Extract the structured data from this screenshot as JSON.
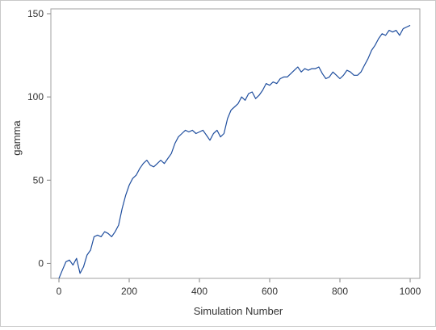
{
  "chart_data": {
    "type": "line",
    "title": "",
    "xlabel": "Simulation Number",
    "ylabel": "gamma",
    "xlim": [
      0,
      1000
    ],
    "ylim": [
      -9,
      150
    ],
    "xticks": [
      0,
      200,
      400,
      600,
      800,
      1000
    ],
    "yticks": [
      0,
      50,
      100,
      150
    ],
    "grid": false,
    "line_color": "#1f4e9e",
    "series": [
      {
        "x": [
          0,
          10,
          20,
          30,
          40,
          50,
          60,
          70,
          80,
          90,
          100,
          110,
          120,
          130,
          140,
          150,
          160,
          170,
          180,
          190,
          200,
          210,
          220,
          230,
          240,
          250,
          260,
          270,
          280,
          290,
          300,
          310,
          320,
          330,
          340,
          350,
          360,
          370,
          380,
          390,
          400,
          410,
          420,
          430,
          440,
          450,
          460,
          470,
          480,
          490,
          500,
          510,
          520,
          530,
          540,
          550,
          560,
          570,
          580,
          590,
          600,
          610,
          620,
          630,
          640,
          650,
          660,
          670,
          680,
          690,
          700,
          710,
          720,
          730,
          740,
          750,
          760,
          770,
          780,
          790,
          800,
          810,
          820,
          830,
          840,
          850,
          860,
          870,
          880,
          890,
          900,
          910,
          920,
          930,
          940,
          950,
          960,
          970,
          980,
          990,
          1000
        ],
        "y": [
          -9,
          -4,
          1,
          2,
          -1,
          3,
          -6,
          -2,
          5,
          8,
          16,
          17,
          16,
          19,
          18,
          16,
          19,
          23,
          33,
          41,
          47,
          51,
          53,
          57,
          60,
          62,
          59,
          58,
          60,
          62,
          60,
          63,
          66,
          72,
          76,
          78,
          80,
          79,
          80,
          78,
          79,
          80,
          77,
          74,
          78,
          80,
          76,
          78,
          87,
          92,
          94,
          96,
          100,
          98,
          102,
          103,
          99,
          101,
          104,
          108,
          107,
          109,
          108,
          111,
          112,
          112,
          114,
          116,
          118,
          115,
          117,
          116,
          117,
          117,
          118,
          114,
          111,
          112,
          115,
          113,
          111,
          113,
          116,
          115,
          113,
          113,
          115,
          119,
          123,
          128,
          131,
          135,
          138,
          137,
          140,
          139,
          140,
          137,
          141,
          142,
          143
        ]
      }
    ]
  }
}
